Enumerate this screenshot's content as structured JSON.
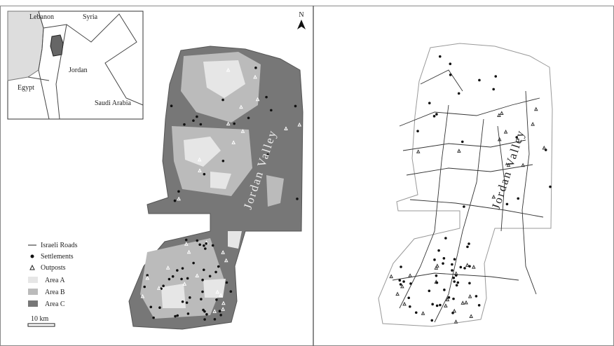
{
  "inset": {
    "labels": [
      "Lebanon",
      "Syria",
      "Jordan",
      "Egypt",
      "Saudi Arabia"
    ]
  },
  "north": "N",
  "left_map": {
    "valley_label": "Jordan Valley"
  },
  "right_map": {
    "valley_label": "Jordan Valley"
  },
  "legend": {
    "items": [
      "Israeli Roads",
      "Settlements",
      "Outposts",
      "Area A",
      "Area B",
      "Area C"
    ]
  },
  "scale_bar": "10 km"
}
